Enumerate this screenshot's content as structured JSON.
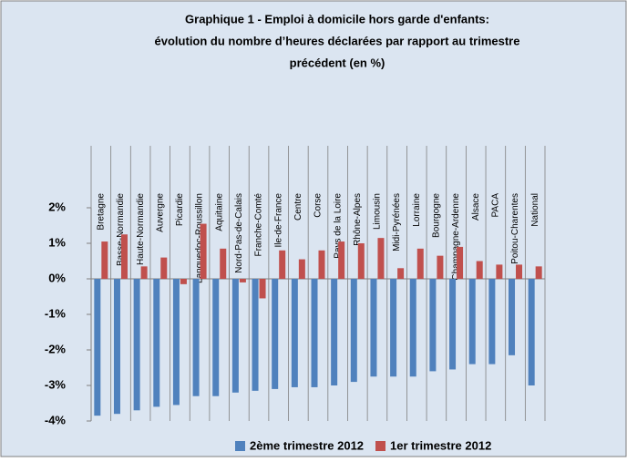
{
  "chart_data": {
    "type": "bar",
    "title": [
      "Graphique 1 - Emploi à domicile  hors garde d'enfants:",
      "évolution du nombre d’heures déclarées par rapport au trimestre",
      "précédent (en %)"
    ],
    "categories": [
      "Bretagne",
      "Basse-Normandie",
      "Haute-Normandie",
      "Auvergne",
      "Picardie",
      "Languedoc-Roussillon",
      "Aquitaine",
      "Nord-Pas-de-Calais",
      "Franche-Comté",
      "Ile-de-France",
      "Centre",
      "Corse",
      "Pays de la Loire",
      "Rhône-Alpes",
      "Limousin",
      "Midi-Pyrénées",
      "Lorraine",
      "Bourgogne",
      "Champagne-Ardenne",
      "Alsace",
      "PACA",
      "Poitou-Charentes",
      "National"
    ],
    "series": [
      {
        "name": "2ème trimestre 2012",
        "color": "#4f81bd",
        "values": [
          -3.85,
          -3.8,
          -3.7,
          -3.6,
          -3.55,
          -3.3,
          -3.3,
          -3.2,
          -3.15,
          -3.1,
          -3.05,
          -3.05,
          -3.0,
          -2.9,
          -2.75,
          -2.75,
          -2.75,
          -2.6,
          -2.55,
          -2.4,
          -2.4,
          -2.15,
          -3.0
        ]
      },
      {
        "name": "1er trimestre 2012",
        "color": "#c0504d",
        "values": [
          1.05,
          1.25,
          0.35,
          0.6,
          -0.15,
          1.55,
          0.85,
          -0.1,
          -0.55,
          0.8,
          0.55,
          0.8,
          1.05,
          1.0,
          1.15,
          0.3,
          0.85,
          0.65,
          0.9,
          0.5,
          0.4,
          0.4,
          0.35
        ]
      }
    ],
    "ylim": [
      -4,
      2
    ],
    "yticks": [
      {
        "value": 2,
        "label": "2%"
      },
      {
        "value": 1,
        "label": "1%"
      },
      {
        "value": 0,
        "label": "0%"
      },
      {
        "value": -1,
        "label": "-1%"
      },
      {
        "value": -2,
        "label": "-2%"
      },
      {
        "value": -3,
        "label": "-3%"
      },
      {
        "value": -4,
        "label": "-4%"
      }
    ],
    "legend": "bottom"
  }
}
